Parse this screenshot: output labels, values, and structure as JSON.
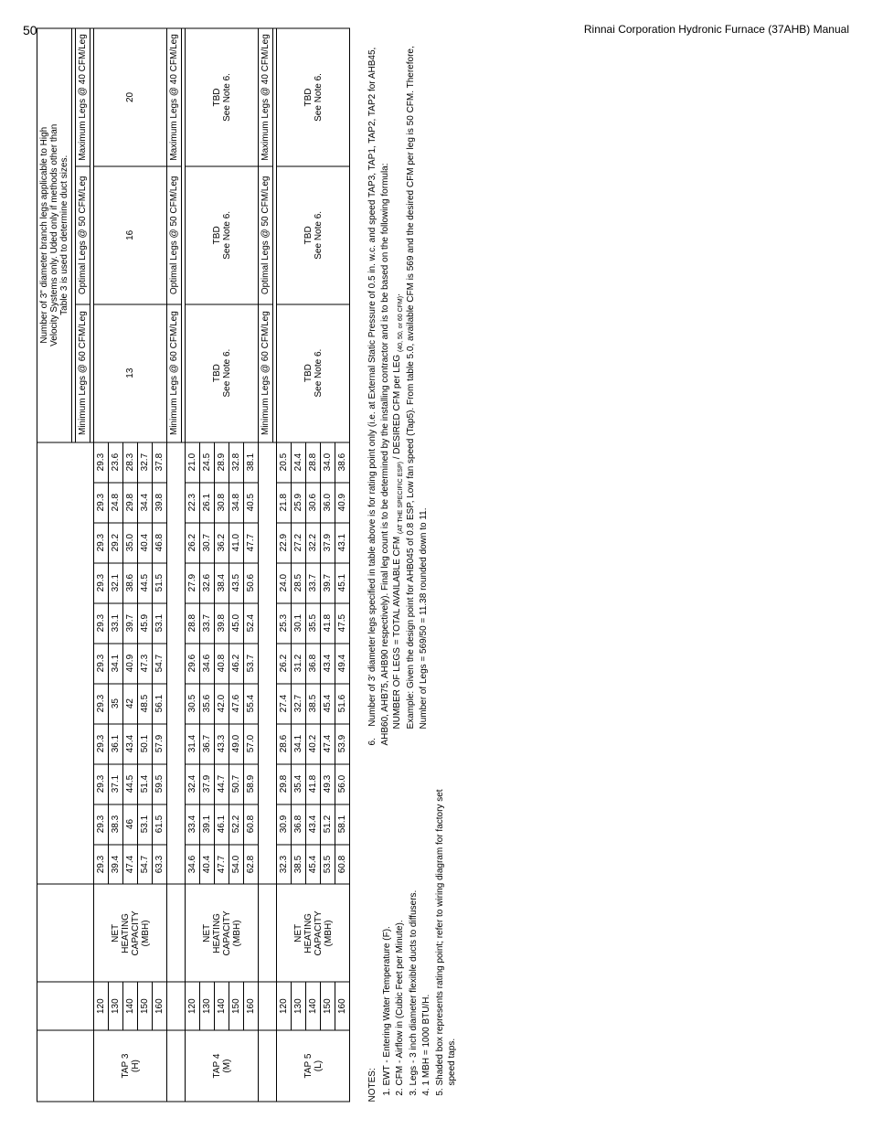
{
  "page_number": "50",
  "footer": "Rinnai Corporation Hydronic Furnace (37AHB) Manual",
  "branch_header": {
    "line1": "Number of 3\" diameter branch legs applicable to High",
    "line2": "Velocity Systems only.  Uded only if methods other than",
    "line3": "Table 3 is used to determine duct sizes."
  },
  "leg_cols": {
    "min": "Minimum Legs @ 60 CFM/Leg",
    "opt": "Optimal Legs @ 50 CFM/Leg",
    "max": "Maximum Legs @ 40 CFM/Leg"
  },
  "net_heat_label": "NET HEATING CAPACITY (MBH)",
  "tap3": {
    "label": "TAP 3 (H)",
    "rows": [
      {
        "cap": "120",
        "d": [
          "29.3",
          "29.3",
          "29.3",
          "29.3",
          "29.3",
          "29.3",
          "29.3",
          "29.3",
          "29.3",
          "29.3",
          "29.3"
        ]
      },
      {
        "cap": "130",
        "d": [
          "39.4",
          "38.3",
          "37.1",
          "36.1",
          "35",
          "34.1",
          "33.1",
          "32.1",
          "29.2",
          "24.8",
          "23.6"
        ]
      },
      {
        "cap": "140",
        "d": [
          "47.4",
          "46",
          "44.5",
          "43.4",
          "42",
          "40.9",
          "39.7",
          "38.6",
          "35.0",
          "29.8",
          "28.3"
        ]
      },
      {
        "cap": "150",
        "d": [
          "54.7",
          "53.1",
          "51.4",
          "50.1",
          "48.5",
          "47.3",
          "45.9",
          "44.5",
          "40.4",
          "34.4",
          "32.7"
        ]
      },
      {
        "cap": "160",
        "d": [
          "63.3",
          "61.5",
          "59.5",
          "57.9",
          "56.1",
          "54.7",
          "53.1",
          "51.5",
          "46.8",
          "39.8",
          "37.8"
        ]
      }
    ],
    "legs": {
      "min": "13",
      "opt": "16",
      "max": "20"
    }
  },
  "tap4": {
    "label": "TAP 4 (M)",
    "rows": [
      {
        "cap": "120",
        "d": [
          "34.6",
          "33.4",
          "32.4",
          "31.4",
          "30.5",
          "29.6",
          "28.8",
          "27.9",
          "26.2",
          "22.3",
          "21.0"
        ]
      },
      {
        "cap": "130",
        "d": [
          "40.4",
          "39.1",
          "37.9",
          "36.7",
          "35.6",
          "34.6",
          "33.7",
          "32.6",
          "30.7",
          "26.1",
          "24.5"
        ]
      },
      {
        "cap": "140",
        "d": [
          "47.7",
          "46.1",
          "44.7",
          "43.3",
          "42.0",
          "40.8",
          "39.8",
          "38.4",
          "36.2",
          "30.8",
          "28.9"
        ]
      },
      {
        "cap": "150",
        "d": [
          "54.0",
          "52.2",
          "50.7",
          "49.0",
          "47.6",
          "46.2",
          "45.0",
          "43.5",
          "41.0",
          "34.8",
          "32.8"
        ]
      },
      {
        "cap": "160",
        "d": [
          "62.8",
          "60.8",
          "58.9",
          "57.0",
          "55.4",
          "53.7",
          "52.4",
          "50.6",
          "47.7",
          "40.5",
          "38.1"
        ]
      }
    ],
    "legs": {
      "min": "TBD",
      "opt": "TBD",
      "max": "TBD",
      "sub": "See Note 6."
    }
  },
  "tap5": {
    "label": "TAP 5 (L)",
    "rows": [
      {
        "cap": "120",
        "d": [
          "32.3",
          "30.9",
          "29.8",
          "28.6",
          "27.4",
          "26.2",
          "25.3",
          "24.0",
          "22.9",
          "21.8",
          "20.5"
        ]
      },
      {
        "cap": "130",
        "d": [
          "38.5",
          "36.8",
          "35.4",
          "34.1",
          "32.7",
          "31.2",
          "30.1",
          "28.5",
          "27.2",
          "25.9",
          "24.4"
        ]
      },
      {
        "cap": "140",
        "d": [
          "45.4",
          "43.4",
          "41.8",
          "40.2",
          "38.5",
          "36.8",
          "35.5",
          "33.7",
          "32.2",
          "30.6",
          "28.8"
        ]
      },
      {
        "cap": "150",
        "d": [
          "53.5",
          "51.2",
          "49.3",
          "47.4",
          "45.4",
          "43.4",
          "41.8",
          "39.7",
          "37.9",
          "36.0",
          "34.0"
        ]
      },
      {
        "cap": "160",
        "d": [
          "60.8",
          "58.1",
          "56.0",
          "53.9",
          "51.6",
          "49.4",
          "47.5",
          "45.1",
          "43.1",
          "40.9",
          "38.6"
        ]
      }
    ],
    "legs": {
      "min": "TBD",
      "opt": "TBD",
      "max": "TBD",
      "sub": "See Note 6."
    }
  },
  "notes_title": "NOTES:",
  "notes_left": [
    "EWT - Entering Water Temperature (F).",
    "CFM - Airflow in (Cubic Feet per Minute).",
    "Legs - 3 inch diameter flexible ducts to diffusers.",
    "1 MBH = 1000 BTU/H.",
    "Shaded box represents rating point; refer to wiring diagram for factory set speed taps."
  ],
  "note6": "Number of 3' diameter legs specified in table above is for rating point only (i.e. at External Static Pressure of 0.5 in. w.c. and speed TAP3, TAP1, TAP2, TAP2 for AHB45, AHB60, AHB75, AHB90 respectively).  Final leg count is to be determined by the installing contractor and is to be based on the following formula:",
  "note6_formula": "NUMBER OF LEGS = TOTAL AVAILABLE CFM (AT THE SPECIFIC ESP) / DESIRED CFM per LEG (40, 50, or 60 CFM).",
  "note6_example": "Example: Given the design point for AHB045 of 0.8 ESP, Low fan speed (Tap5).  From table 5.0, available CFM is 569 and the desired CFM per leg is 50 CFM.  Therefore, Number of Legs = 569/50 = 11.38 rounded down to 11."
}
